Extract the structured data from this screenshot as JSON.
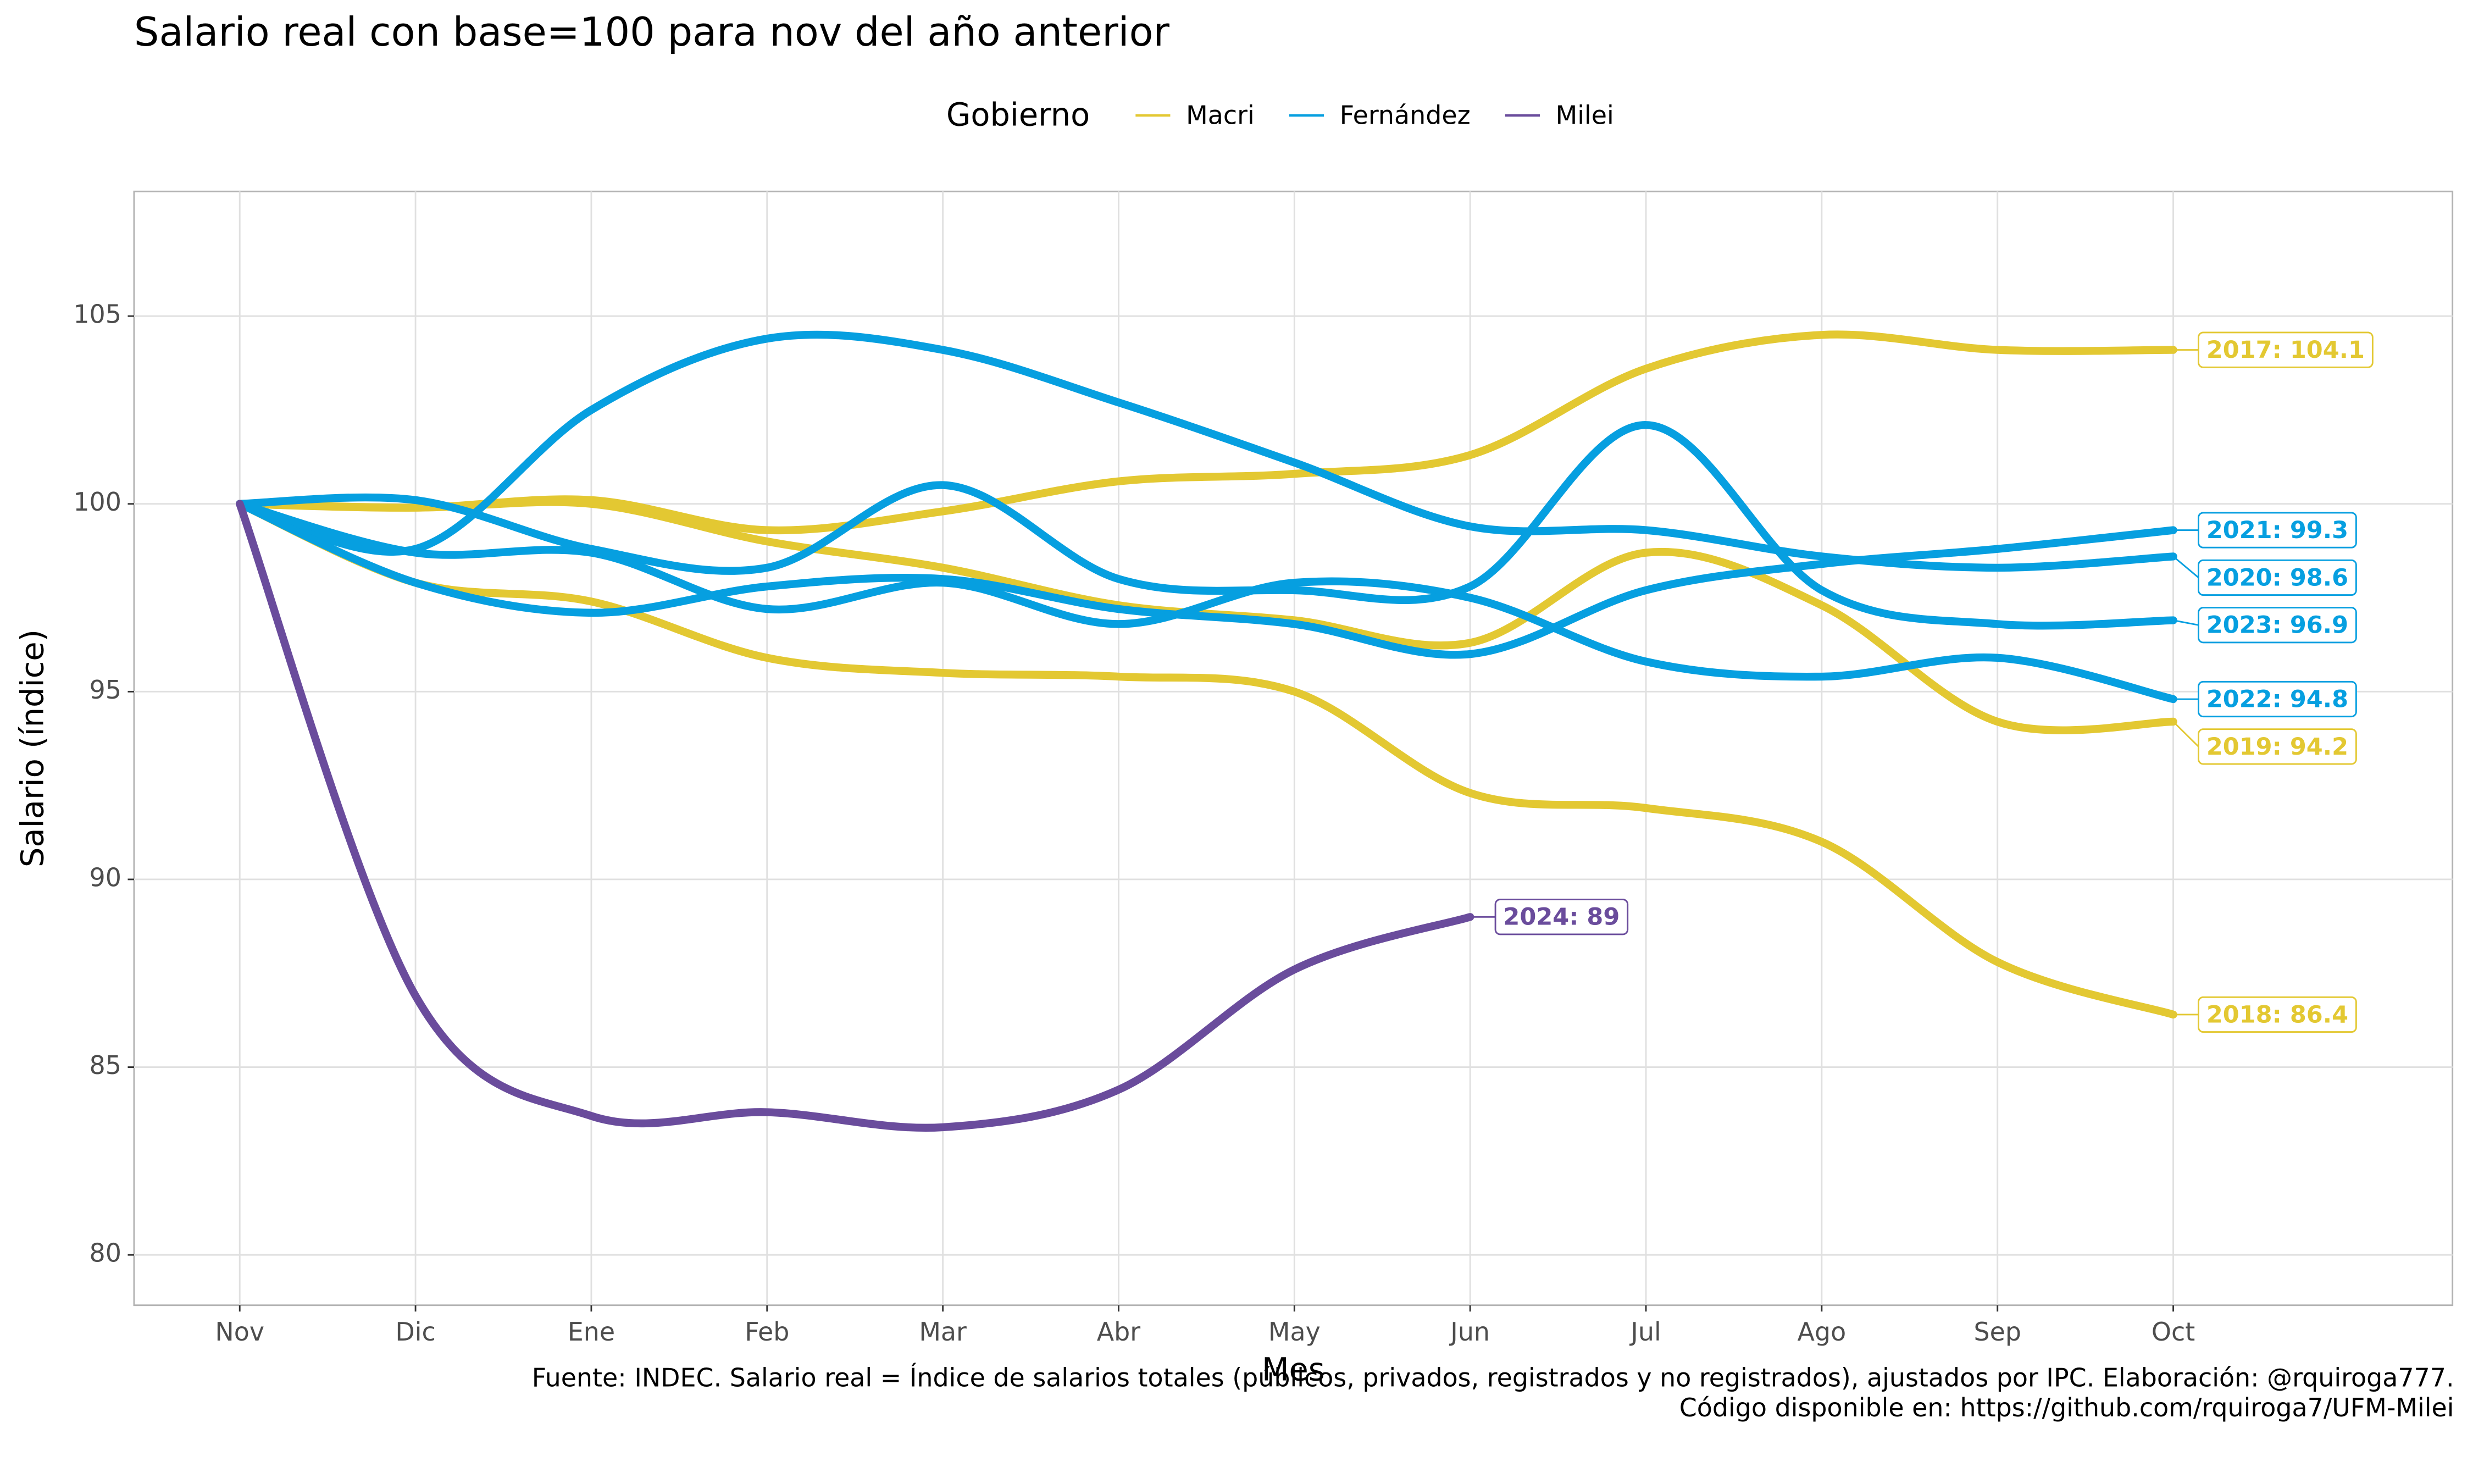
{
  "chart_data": {
    "type": "line",
    "title": "Salario real con base=100 para nov del año anterior",
    "x_label": "Mes",
    "y_label": "Salario (índice)",
    "caption": [
      "Fuente: INDEC. Salario real = Índice de salarios totales (públicos, privados, registrados y no registrados), ajustados por IPC. Elaboración: @rquiroga777.",
      "Código disponible en: https://github.com/rquiroga7/UFM-Milei"
    ],
    "legend": {
      "title": "Gobierno",
      "position": "top",
      "entries": [
        {
          "name": "Macri",
          "color": "#e3c832"
        },
        {
          "name": "Fernández",
          "color": "#069fe0"
        },
        {
          "name": "Milei",
          "color": "#6a4c9c"
        }
      ]
    },
    "categories": [
      "Nov",
      "Dic",
      "Ene",
      "Feb",
      "Mar",
      "Abr",
      "May",
      "Jun",
      "Jul",
      "Ago",
      "Sep",
      "Oct"
    ],
    "ylim": [
      78.66,
      108.32
    ],
    "yticks": [
      80,
      85,
      90,
      95,
      100,
      105
    ],
    "grid": true,
    "series": [
      {
        "name": "2017",
        "group": "Macri",
        "color": "#e3c832",
        "label": "2017: 104.1",
        "values": [
          100,
          99.9,
          100.1,
          99.3,
          99.8,
          100.6,
          100.8,
          101.3,
          103.6,
          104.5,
          104.1,
          104.1
        ]
      },
      {
        "name": "2018",
        "group": "Macri",
        "color": "#e3c832",
        "label": "2018: 86.4",
        "values": [
          100,
          97.9,
          97.4,
          95.9,
          95.5,
          95.4,
          95.0,
          92.3,
          91.9,
          91.0,
          87.8,
          86.4
        ]
      },
      {
        "name": "2019",
        "group": "Macri",
        "color": "#e3c832",
        "label": "2019: 94.2",
        "values": [
          100,
          99.9,
          100.0,
          99.0,
          98.3,
          97.3,
          96.9,
          96.3,
          98.7,
          97.3,
          94.2,
          94.2
        ]
      },
      {
        "name": "2020",
        "group": "Fernández",
        "color": "#069fe0",
        "label": "2020: 98.6",
        "values": [
          100,
          98.8,
          102.5,
          104.4,
          104.1,
          102.7,
          101.1,
          99.4,
          99.3,
          98.6,
          98.3,
          98.6
        ]
      },
      {
        "name": "2021",
        "group": "Fernández",
        "color": "#069fe0",
        "label": "2021: 99.3",
        "values": [
          100,
          97.9,
          97.1,
          97.8,
          98.0,
          97.2,
          96.8,
          96.0,
          97.7,
          98.4,
          98.8,
          99.3
        ]
      },
      {
        "name": "2022",
        "group": "Fernández",
        "color": "#069fe0",
        "label": "2022: 94.8",
        "values": [
          100,
          98.7,
          98.7,
          97.2,
          97.9,
          96.8,
          97.9,
          97.5,
          95.8,
          95.4,
          95.9,
          94.8
        ]
      },
      {
        "name": "2023",
        "group": "Fernández",
        "color": "#069fe0",
        "label": "2023: 96.9",
        "values": [
          100,
          100.1,
          98.8,
          98.3,
          100.5,
          98.0,
          97.7,
          97.8,
          102.1,
          97.7,
          96.8,
          96.9
        ]
      },
      {
        "name": "2024",
        "group": "Milei",
        "color": "#6a4c9c",
        "label": "2024: 89",
        "values": [
          100,
          86.9,
          83.7,
          83.8,
          83.4,
          84.4,
          87.6,
          89,
          null,
          null,
          null,
          null
        ]
      }
    ]
  }
}
